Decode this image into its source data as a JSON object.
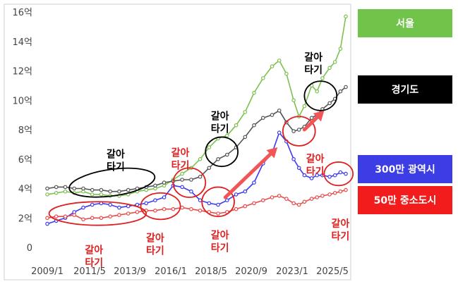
{
  "chart_data": {
    "type": "line",
    "title": "",
    "xlabel": "",
    "ylabel": "",
    "ylim": [
      0,
      16
    ],
    "x_ticks": [
      "2009/1",
      "2011/5",
      "2013/9",
      "2016/1",
      "2018/5",
      "2020/9",
      "2023/1",
      "2025/5"
    ],
    "y_ticks": [
      "0",
      "2억",
      "4억",
      "6억",
      "8억",
      "10억",
      "12억",
      "14억",
      "16억"
    ],
    "legend_position": "right",
    "grid": false,
    "series": [
      {
        "name": "서울",
        "color": "#7cc150",
        "legend_color": "#70c44a",
        "points": [
          [
            2009.0,
            3.6
          ],
          [
            2009.5,
            3.7
          ],
          [
            2010.0,
            3.8
          ],
          [
            2010.5,
            3.7
          ],
          [
            2011.0,
            3.8
          ],
          [
            2011.5,
            3.6
          ],
          [
            2012.0,
            3.6
          ],
          [
            2012.5,
            3.5
          ],
          [
            2013.0,
            3.5
          ],
          [
            2013.5,
            3.6
          ],
          [
            2014.0,
            3.8
          ],
          [
            2014.5,
            3.9
          ],
          [
            2015.0,
            4.0
          ],
          [
            2015.5,
            4.2
          ],
          [
            2016.0,
            4.6
          ],
          [
            2016.5,
            5.0
          ],
          [
            2017.0,
            5.4
          ],
          [
            2017.5,
            6.0
          ],
          [
            2018.0,
            6.8
          ],
          [
            2018.5,
            7.4
          ],
          [
            2019.0,
            7.6
          ],
          [
            2019.5,
            8.3
          ],
          [
            2020.0,
            9.2
          ],
          [
            2020.5,
            10.5
          ],
          [
            2021.0,
            11.5
          ],
          [
            2021.5,
            12.3
          ],
          [
            2021.9,
            12.7
          ],
          [
            2022.3,
            11.8
          ],
          [
            2022.7,
            10.0
          ],
          [
            2023.0,
            8.9
          ],
          [
            2023.3,
            9.6
          ],
          [
            2023.7,
            11.0
          ],
          [
            2024.0,
            10.6
          ],
          [
            2024.3,
            11.5
          ],
          [
            2024.7,
            12.2
          ],
          [
            2025.0,
            12.6
          ],
          [
            2025.3,
            13.5
          ],
          [
            2025.6,
            15.7
          ]
        ]
      },
      {
        "name": "경기도",
        "color": "#555555",
        "legend_color": "#000000",
        "points": [
          [
            2009.0,
            4.0
          ],
          [
            2009.5,
            4.1
          ],
          [
            2010.0,
            4.1
          ],
          [
            2010.5,
            4.0
          ],
          [
            2011.0,
            4.0
          ],
          [
            2011.5,
            3.9
          ],
          [
            2012.0,
            3.9
          ],
          [
            2012.5,
            3.8
          ],
          [
            2013.0,
            3.8
          ],
          [
            2013.5,
            3.9
          ],
          [
            2014.0,
            4.0
          ],
          [
            2014.5,
            4.1
          ],
          [
            2015.0,
            4.2
          ],
          [
            2015.5,
            4.4
          ],
          [
            2016.0,
            4.5
          ],
          [
            2016.5,
            4.6
          ],
          [
            2017.0,
            4.6
          ],
          [
            2017.5,
            4.8
          ],
          [
            2018.0,
            5.4
          ],
          [
            2018.5,
            6.0
          ],
          [
            2019.0,
            6.3
          ],
          [
            2019.5,
            6.8
          ],
          [
            2020.0,
            7.5
          ],
          [
            2020.5,
            8.3
          ],
          [
            2021.0,
            8.8
          ],
          [
            2021.5,
            9.0
          ],
          [
            2021.9,
            9.3
          ],
          [
            2022.3,
            8.5
          ],
          [
            2022.7,
            7.9
          ],
          [
            2023.0,
            8.0
          ],
          [
            2023.3,
            8.2
          ],
          [
            2023.7,
            8.8
          ],
          [
            2024.0,
            9.0
          ],
          [
            2024.3,
            9.4
          ],
          [
            2024.7,
            9.8
          ],
          [
            2025.0,
            10.1
          ],
          [
            2025.3,
            10.6
          ],
          [
            2025.6,
            10.9
          ]
        ]
      },
      {
        "name": "300만 광역시",
        "color": "#3a3af0",
        "legend_color": "#3d3de6",
        "points": [
          [
            2009.0,
            1.6
          ],
          [
            2009.5,
            1.8
          ],
          [
            2010.0,
            2.0
          ],
          [
            2010.5,
            2.4
          ],
          [
            2011.0,
            2.7
          ],
          [
            2011.5,
            2.9
          ],
          [
            2012.0,
            3.0
          ],
          [
            2012.5,
            2.9
          ],
          [
            2013.0,
            2.7
          ],
          [
            2013.5,
            2.8
          ],
          [
            2014.0,
            2.9
          ],
          [
            2014.5,
            3.0
          ],
          [
            2015.0,
            3.2
          ],
          [
            2015.5,
            3.4
          ],
          [
            2016.0,
            4.2
          ],
          [
            2016.5,
            4.1
          ],
          [
            2017.0,
            3.8
          ],
          [
            2017.5,
            3.2
          ],
          [
            2018.0,
            3.0
          ],
          [
            2018.5,
            2.9
          ],
          [
            2019.0,
            3.2
          ],
          [
            2019.5,
            3.6
          ],
          [
            2020.0,
            3.8
          ],
          [
            2020.5,
            4.4
          ],
          [
            2021.0,
            5.7
          ],
          [
            2021.5,
            6.4
          ],
          [
            2021.9,
            7.8
          ],
          [
            2022.3,
            7.2
          ],
          [
            2022.7,
            6.0
          ],
          [
            2023.0,
            5.4
          ],
          [
            2023.3,
            4.9
          ],
          [
            2023.7,
            4.7
          ],
          [
            2024.0,
            4.9
          ],
          [
            2024.3,
            4.9
          ],
          [
            2024.7,
            4.8
          ],
          [
            2025.0,
            4.9
          ],
          [
            2025.3,
            5.1
          ],
          [
            2025.6,
            5.0
          ]
        ]
      },
      {
        "name": "50만 중소도시",
        "color": "#e84a4a",
        "legend_color": "#f21c1c",
        "points": [
          [
            2009.0,
            2.0
          ],
          [
            2009.5,
            2.1
          ],
          [
            2010.0,
            2.1
          ],
          [
            2010.5,
            2.2
          ],
          [
            2011.0,
            1.9
          ],
          [
            2011.5,
            2.0
          ],
          [
            2012.0,
            2.0
          ],
          [
            2012.5,
            2.1
          ],
          [
            2013.0,
            2.2
          ],
          [
            2013.5,
            2.3
          ],
          [
            2014.0,
            2.4
          ],
          [
            2014.5,
            2.5
          ],
          [
            2015.0,
            2.5
          ],
          [
            2015.5,
            2.6
          ],
          [
            2016.0,
            2.6
          ],
          [
            2016.5,
            2.7
          ],
          [
            2017.0,
            2.6
          ],
          [
            2017.5,
            2.5
          ],
          [
            2018.0,
            2.4
          ],
          [
            2018.5,
            2.3
          ],
          [
            2019.0,
            2.4
          ],
          [
            2019.5,
            2.6
          ],
          [
            2020.0,
            2.8
          ],
          [
            2020.5,
            3.0
          ],
          [
            2021.0,
            3.2
          ],
          [
            2021.5,
            3.4
          ],
          [
            2021.9,
            3.5
          ],
          [
            2022.3,
            3.3
          ],
          [
            2022.7,
            3.0
          ],
          [
            2023.0,
            2.9
          ],
          [
            2023.3,
            3.1
          ],
          [
            2023.7,
            3.3
          ],
          [
            2024.0,
            3.4
          ],
          [
            2024.3,
            3.5
          ],
          [
            2024.7,
            3.6
          ],
          [
            2025.0,
            3.7
          ],
          [
            2025.3,
            3.8
          ],
          [
            2025.6,
            3.9
          ]
        ]
      }
    ],
    "annotations": [
      {
        "lines": [
          "갈아",
          "타기"
        ],
        "color": "#000000",
        "x": 2012.8,
        "y": 6.1,
        "ellipse": {
          "x": 2012.6,
          "y": 4.4,
          "rx": 2.4,
          "ry": 0.9,
          "angle": -8
        }
      },
      {
        "lines": [
          "갈아",
          "타기"
        ],
        "color": "#e02020",
        "x": 2011.6,
        "y": -0.4,
        "ellipse": {
          "x": 2011.8,
          "y": 2.3,
          "rx": 2.7,
          "ry": 0.8,
          "angle": 0
        }
      },
      {
        "lines": [
          "갈아",
          "타기"
        ],
        "color": "#e02020",
        "x": 2015.0,
        "y": 0.4,
        "ellipse": {
          "x": 2015.3,
          "y": 2.8,
          "rx": 1.1,
          "ry": 0.9,
          "angle": 0
        }
      },
      {
        "lines": [
          "갈아",
          "타기"
        ],
        "color": "#e02020",
        "x": 2016.4,
        "y": 6.2,
        "ellipse": {
          "x": 2016.9,
          "y": 4.4,
          "rx": 0.9,
          "ry": 1.0,
          "angle": 0
        }
      },
      {
        "lines": [
          "갈아",
          "타기"
        ],
        "color": "#000000",
        "x": 2018.6,
        "y": 8.7,
        "ellipse": {
          "x": 2018.7,
          "y": 6.5,
          "rx": 0.9,
          "ry": 1.0,
          "angle": 0
        }
      },
      {
        "lines": [
          "갈아",
          "타기"
        ],
        "color": "#e02020",
        "x": 2018.6,
        "y": 0.6,
        "ellipse": {
          "x": 2018.5,
          "y": 3.1,
          "rx": 0.9,
          "ry": 1.0,
          "angle": 0
        }
      },
      {
        "lines": [
          "갈아",
          "타기"
        ],
        "color": "#e02020",
        "x": 2023.9,
        "y": 5.8,
        "ellipse": {
          "x": 2023.0,
          "y": 7.9,
          "rx": 0.9,
          "ry": 1.0,
          "angle": 0
        }
      },
      {
        "lines": [
          "갈아",
          "타기"
        ],
        "color": "#000000",
        "x": 2023.8,
        "y": 12.7,
        "ellipse": {
          "x": 2024.2,
          "y": 10.3,
          "rx": 0.9,
          "ry": 1.0,
          "angle": 0
        }
      },
      {
        "lines": [
          "갈아",
          "타기"
        ],
        "color": "#e02020",
        "x": 2025.3,
        "y": 1.4,
        "ellipse": {
          "x": 2025.2,
          "y": 5.0,
          "rx": 0.8,
          "ry": 0.8,
          "angle": 0
        }
      }
    ],
    "arrows": [
      {
        "color": "#f25555",
        "from": [
          2018.9,
          3.4
        ],
        "to": [
          2021.8,
          6.8
        ]
      },
      {
        "color": "#f25555",
        "from": [
          2023.3,
          8.0
        ],
        "to": [
          2024.4,
          9.3
        ]
      }
    ]
  }
}
